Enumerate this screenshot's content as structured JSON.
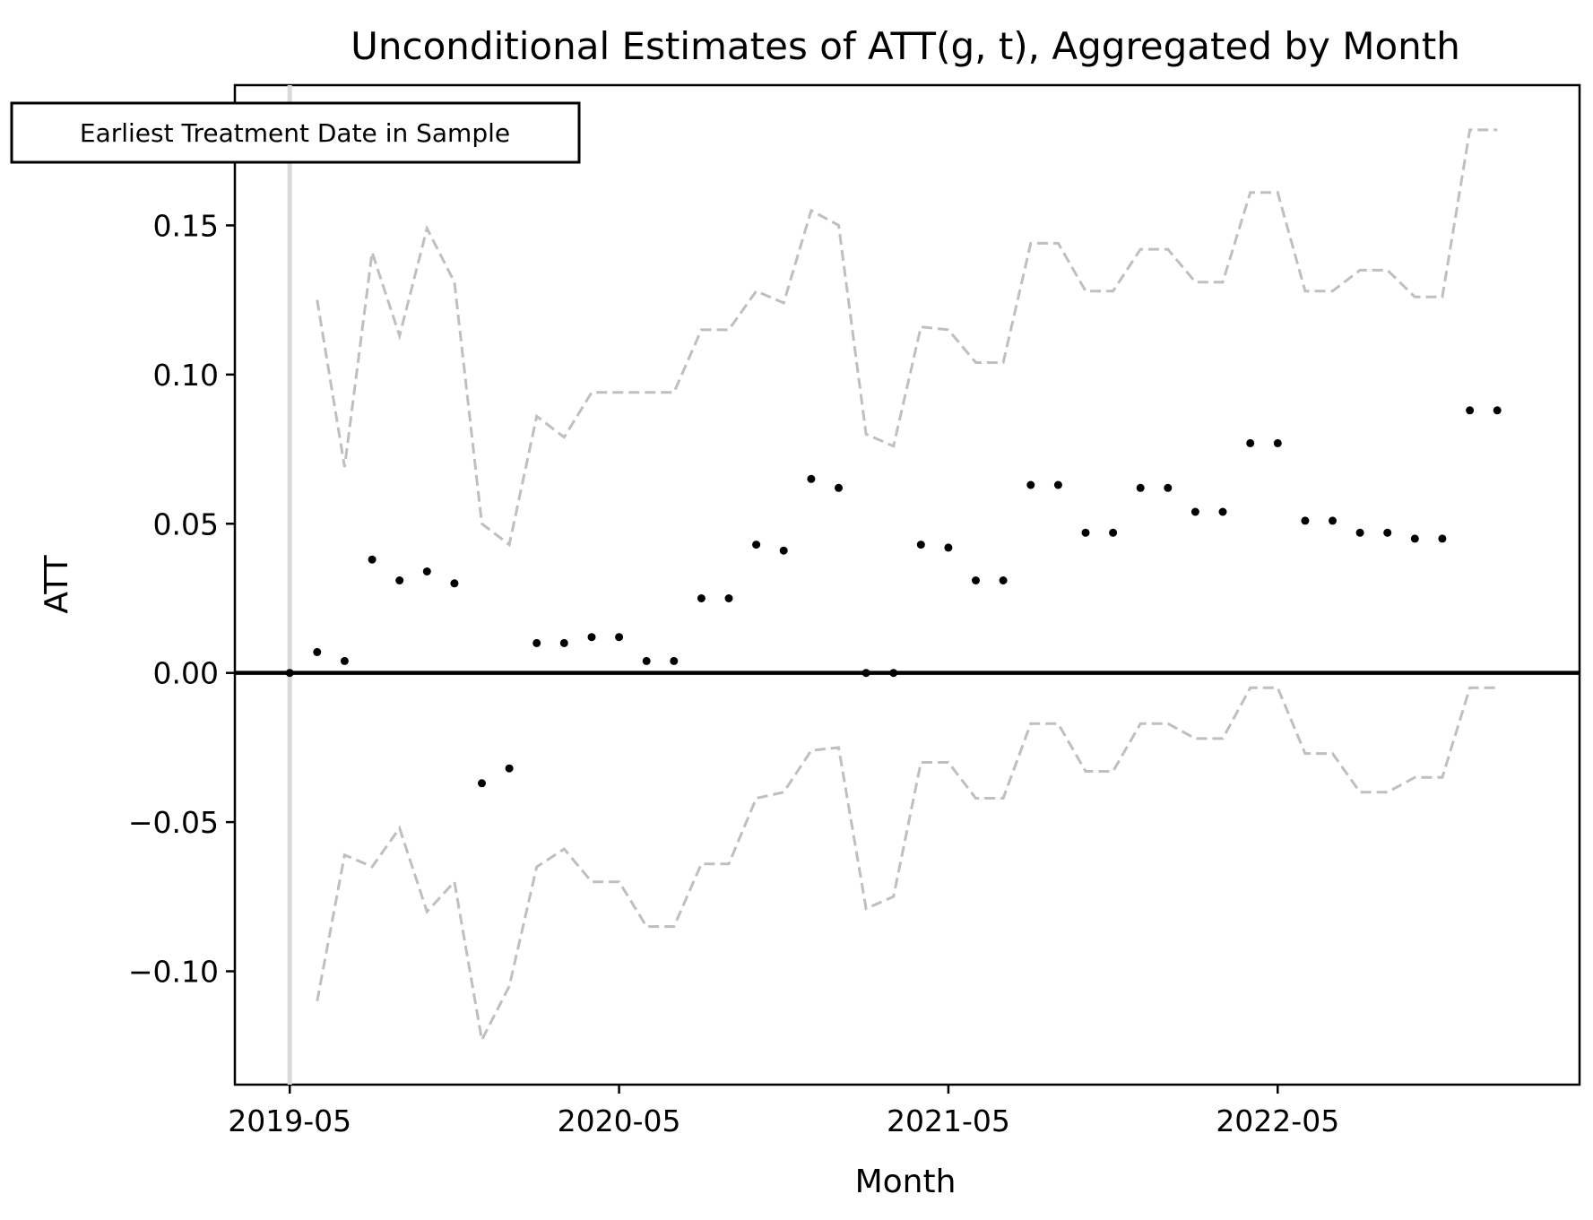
{
  "chart_data": {
    "type": "scatter",
    "title": "Unconditional Estimates of ATT(g, t), Aggregated by Month",
    "xlabel": "Month",
    "ylabel": "ATT",
    "x_tick_labels": [
      "2019-05",
      "2020-05",
      "2021-05",
      "2022-05"
    ],
    "y_tick_labels": [
      "−0.10",
      "−0.05",
      "0.00",
      "0.05",
      "0.10",
      "0.15"
    ],
    "y_ticks": [
      -0.1,
      -0.05,
      0.0,
      0.05,
      0.1,
      0.15
    ],
    "xlim": [
      "2019-03",
      "2023-04"
    ],
    "ylim": [
      -0.138,
      0.197
    ],
    "annotation": "Earliest Treatment Date in Sample",
    "reference_line": {
      "x": "2019-05",
      "color": "#d9d9d9"
    },
    "zero_line": {
      "y": 0,
      "color": "#000000"
    },
    "grid": false,
    "colors": {
      "points": "#000000",
      "bounds": "#bfbfbf"
    },
    "x": [
      "2019-05",
      "2019-06",
      "2019-07",
      "2019-08",
      "2019-09",
      "2019-10",
      "2019-11",
      "2019-12",
      "2020-01",
      "2020-02",
      "2020-03",
      "2020-04",
      "2020-05",
      "2020-06",
      "2020-07",
      "2020-08",
      "2020-09",
      "2020-10",
      "2020-11",
      "2020-12",
      "2021-01",
      "2021-02",
      "2021-03",
      "2021-04",
      "2021-05",
      "2021-06",
      "2021-07",
      "2021-08",
      "2021-09",
      "2021-10",
      "2021-11",
      "2021-12",
      "2022-01",
      "2022-02",
      "2022-03",
      "2022-04",
      "2022-05",
      "2022-06",
      "2022-07",
      "2022-08",
      "2022-09",
      "2022-10",
      "2022-11",
      "2022-12",
      "2023-01",
      "2023-02"
    ],
    "series": [
      {
        "role": "estimate",
        "values": [
          0.0,
          0.007,
          0.004,
          0.038,
          0.031,
          0.034,
          0.03,
          -0.037,
          -0.032,
          0.01,
          0.01,
          0.012,
          0.012,
          0.004,
          0.004,
          0.025,
          0.025,
          0.043,
          0.041,
          0.065,
          0.062,
          0.0,
          0.0,
          0.043,
          0.042,
          0.031,
          0.031,
          0.063,
          0.063,
          0.047,
          0.047,
          0.062,
          0.062,
          0.054,
          0.054,
          0.077,
          0.077,
          0.051,
          0.051,
          0.047,
          0.047,
          0.045,
          0.045,
          0.088,
          0.088,
          null
        ]
      },
      {
        "role": "upper bound",
        "values": [
          null,
          0.125,
          0.069,
          0.141,
          0.113,
          0.149,
          0.131,
          0.05,
          0.043,
          0.086,
          0.079,
          0.094,
          0.094,
          0.094,
          0.094,
          0.115,
          0.115,
          0.128,
          0.124,
          0.155,
          0.15,
          0.08,
          0.076,
          0.116,
          0.115,
          0.104,
          0.104,
          0.144,
          0.144,
          0.128,
          0.128,
          0.142,
          0.142,
          0.131,
          0.131,
          0.161,
          0.161,
          0.128,
          0.128,
          0.135,
          0.135,
          0.126,
          0.126,
          0.182,
          0.182,
          null
        ]
      },
      {
        "role": "lower bound",
        "values": [
          null,
          -0.11,
          -0.061,
          -0.065,
          -0.052,
          -0.08,
          -0.07,
          -0.123,
          -0.105,
          -0.065,
          -0.059,
          -0.07,
          -0.07,
          -0.085,
          -0.085,
          -0.064,
          -0.064,
          -0.042,
          -0.04,
          -0.026,
          -0.025,
          -0.079,
          -0.075,
          -0.03,
          -0.03,
          -0.042,
          -0.042,
          -0.017,
          -0.017,
          -0.033,
          -0.033,
          -0.017,
          -0.017,
          -0.022,
          -0.022,
          -0.005,
          -0.005,
          -0.027,
          -0.027,
          -0.04,
          -0.04,
          -0.035,
          -0.035,
          -0.005,
          -0.005,
          null
        ]
      }
    ]
  }
}
